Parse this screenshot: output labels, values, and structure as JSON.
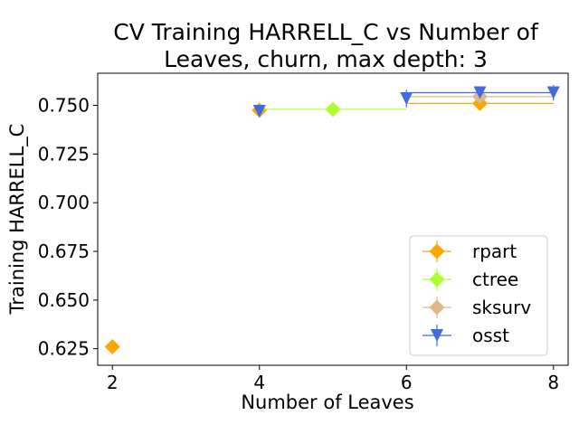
{
  "chart_data": {
    "type": "scatter",
    "title_lines": [
      "CV Training HARRELL_C vs Number of",
      "Leaves,  churn, max depth: 3"
    ],
    "xlabel": "Number of Leaves",
    "ylabel": "Training HARRELL_C",
    "xlim": [
      1.8,
      8.2
    ],
    "ylim": [
      0.6165,
      0.7665
    ],
    "xticks": [
      2,
      4,
      6,
      8
    ],
    "yticks": [
      0.625,
      0.65,
      0.675,
      0.7,
      0.725,
      0.75
    ],
    "ytick_labels": [
      "0.625",
      "0.650",
      "0.675",
      "0.700",
      "0.725",
      "0.750"
    ],
    "grid": false,
    "legend_position": "lower-right",
    "series": [
      {
        "name": "rpart",
        "color": "#FFA500",
        "marker": "diamond",
        "points": [
          {
            "x": 2,
            "y": 0.626,
            "xerr": 0,
            "yerr": 0
          },
          {
            "x": 4,
            "y": 0.7475,
            "xerr": 0,
            "yerr": 0
          },
          {
            "x": 7,
            "y": 0.751,
            "xerr": 1,
            "yerr": 0
          }
        ]
      },
      {
        "name": "ctree",
        "color": "#ADFF2F",
        "marker": "diamond",
        "points": [
          {
            "x": 5,
            "y": 0.748,
            "xerr": 1,
            "yerr": 0
          }
        ]
      },
      {
        "name": "sksurv",
        "color": "#DEB887",
        "marker": "diamond",
        "points": [
          {
            "x": 7,
            "y": 0.7545,
            "xerr": 1,
            "yerr": 0
          }
        ]
      },
      {
        "name": "osst",
        "color": "#4169E1",
        "marker": "triangle-down",
        "points": [
          {
            "x": 4,
            "y": 0.747,
            "xerr": 0,
            "yerr": 0.002
          },
          {
            "x": 6,
            "y": 0.7535,
            "xerr": 0,
            "yerr": 0.0045
          },
          {
            "x": 7,
            "y": 0.7565,
            "xerr": 1,
            "yerr": 0
          },
          {
            "x": 8,
            "y": 0.7565,
            "xerr": 0,
            "yerr": 0.004
          }
        ]
      }
    ]
  }
}
